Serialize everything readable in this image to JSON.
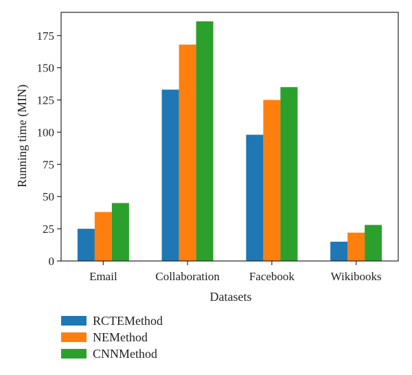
{
  "chart_data": {
    "type": "bar",
    "title": "",
    "xlabel": "Datasets",
    "ylabel": "Running time (MIN)",
    "categories": [
      "Email",
      "Collaboration",
      "Facebook",
      "Wikibooks"
    ],
    "series": [
      {
        "name": "RCTEMethod",
        "color": "#1f77b4",
        "values": [
          25,
          133,
          98,
          15
        ]
      },
      {
        "name": "NEMethod",
        "color": "#ff7f0e",
        "values": [
          38,
          168,
          125,
          22
        ]
      },
      {
        "name": "CNNMethod",
        "color": "#2ca02c",
        "values": [
          45,
          186,
          135,
          28
        ]
      }
    ],
    "ylim": [
      0,
      193
    ],
    "yticks": [
      0,
      25,
      50,
      75,
      100,
      125,
      150,
      175
    ],
    "ytick_labels": [
      "0",
      "25",
      "50",
      "75",
      "100",
      "125",
      "150",
      "175"
    ],
    "grid": false,
    "legend_position": "bottom-left, below plot"
  }
}
